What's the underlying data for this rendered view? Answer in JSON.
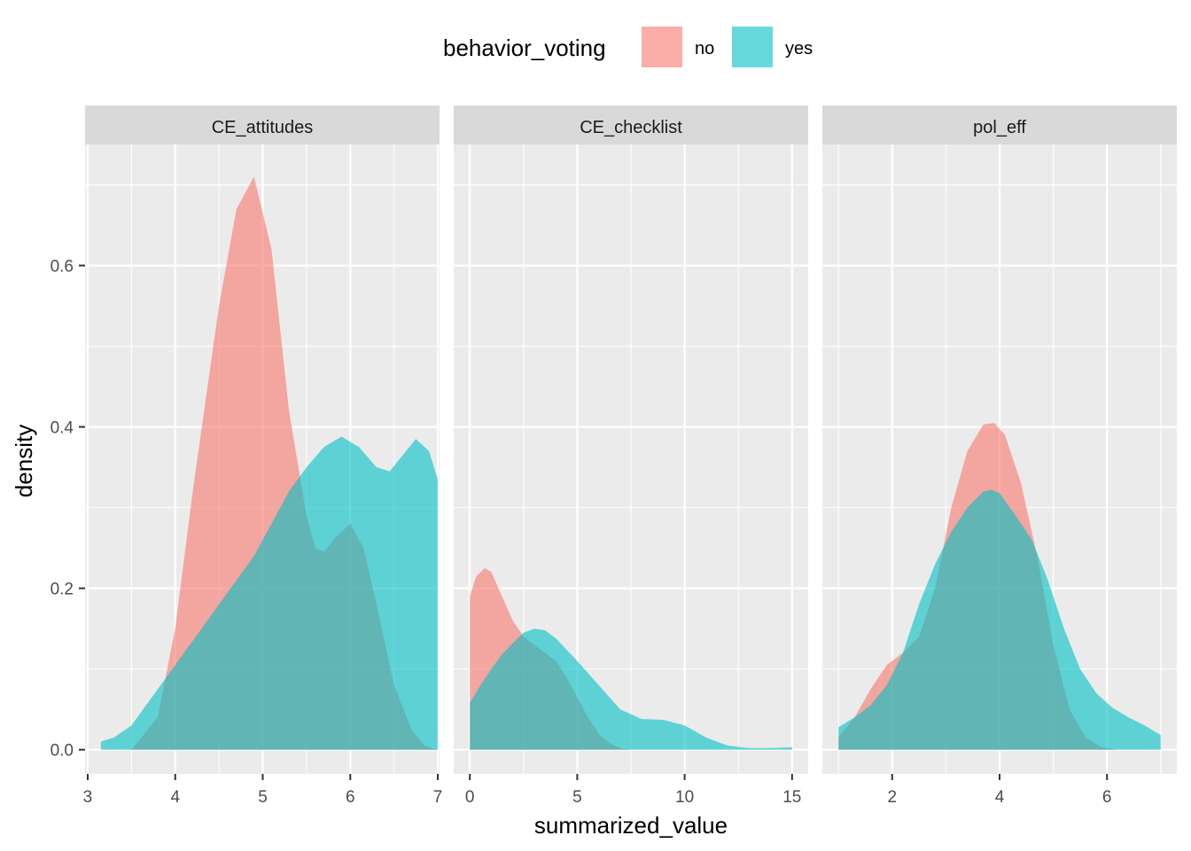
{
  "chart_data": {
    "type": "area",
    "subtype": "density",
    "xlabel": "summarized_value",
    "ylabel": "density",
    "ylim": [
      -0.03,
      0.75
    ],
    "y_ticks": [
      0.0,
      0.2,
      0.4,
      0.6
    ],
    "y_tick_labels": [
      "0.0",
      "0.2",
      "0.4",
      "0.6"
    ],
    "grid": true,
    "legend": {
      "title": "behavior_voting",
      "position": "top",
      "entries": [
        {
          "label": "no",
          "color": "#F8766D"
        },
        {
          "label": "yes",
          "color": "#00BFC4"
        }
      ]
    },
    "fill_opacity": 0.6,
    "panels": [
      {
        "strip": "CE_attitudes",
        "xlim": [
          2.97,
          7.02
        ],
        "x_ticks": [
          3,
          4,
          5,
          6,
          7
        ],
        "x_tick_labels": [
          "3",
          "4",
          "5",
          "6",
          "7"
        ],
        "series": [
          {
            "name": "no",
            "color": "#F8766D",
            "x": [
              3.5,
              3.8,
              4.0,
              4.2,
              4.5,
              4.7,
              4.9,
              5.1,
              5.3,
              5.5,
              5.6,
              5.7,
              5.85,
              6.0,
              6.15,
              6.3,
              6.5,
              6.7,
              6.85,
              7.0
            ],
            "y": [
              0.0,
              0.04,
              0.15,
              0.32,
              0.55,
              0.67,
              0.71,
              0.62,
              0.42,
              0.29,
              0.25,
              0.245,
              0.265,
              0.28,
              0.25,
              0.18,
              0.08,
              0.025,
              0.005,
              0.0
            ]
          },
          {
            "name": "yes",
            "color": "#00BFC4",
            "x": [
              3.15,
              3.3,
              3.5,
              3.7,
              3.9,
              4.1,
              4.3,
              4.5,
              4.7,
              4.9,
              5.1,
              5.3,
              5.5,
              5.7,
              5.9,
              6.1,
              6.3,
              6.45,
              6.6,
              6.75,
              6.9,
              7.0
            ],
            "y": [
              0.01,
              0.015,
              0.03,
              0.06,
              0.09,
              0.12,
              0.15,
              0.18,
              0.21,
              0.24,
              0.28,
              0.32,
              0.35,
              0.375,
              0.388,
              0.375,
              0.35,
              0.345,
              0.365,
              0.385,
              0.37,
              0.335
            ]
          }
        ]
      },
      {
        "strip": "CE_checklist",
        "xlim": [
          -0.75,
          15.75
        ],
        "x_ticks": [
          0,
          5,
          10,
          15
        ],
        "x_tick_labels": [
          "0",
          "5",
          "10",
          "15"
        ],
        "series": [
          {
            "name": "no",
            "color": "#F8766D",
            "x": [
              0.0,
              0.3,
              0.7,
              1.0,
              1.5,
              2.0,
              2.5,
              3.0,
              3.5,
              4.0,
              4.5,
              5.0,
              5.5,
              6.0,
              6.5,
              7.0,
              7.5
            ],
            "y": [
              0.19,
              0.215,
              0.225,
              0.22,
              0.19,
              0.16,
              0.14,
              0.13,
              0.12,
              0.11,
              0.09,
              0.065,
              0.04,
              0.02,
              0.008,
              0.002,
              0.0
            ]
          },
          {
            "name": "yes",
            "color": "#00BFC4",
            "x": [
              0.0,
              0.5,
              1.0,
              1.5,
              2.0,
              2.5,
              3.0,
              3.5,
              4.0,
              5.0,
              6.0,
              7.0,
              8.0,
              9.0,
              10.0,
              11.0,
              12.0,
              13.0,
              14.0,
              15.0
            ],
            "y": [
              0.058,
              0.08,
              0.1,
              0.118,
              0.132,
              0.145,
              0.15,
              0.148,
              0.138,
              0.11,
              0.08,
              0.05,
              0.038,
              0.037,
              0.03,
              0.015,
              0.005,
              0.002,
              0.002,
              0.003
            ]
          }
        ]
      },
      {
        "strip": "pol_eff",
        "xlim": [
          0.7,
          7.3
        ],
        "x_ticks": [
          2,
          4,
          6
        ],
        "x_tick_labels": [
          "2",
          "4",
          "6"
        ],
        "series": [
          {
            "name": "no",
            "color": "#F8766D",
            "x": [
              1.0,
              1.3,
              1.6,
              1.9,
              2.2,
              2.5,
              2.8,
              3.1,
              3.4,
              3.7,
              3.9,
              4.1,
              4.4,
              4.7,
              5.0,
              5.3,
              5.6,
              5.9,
              6.2
            ],
            "y": [
              0.015,
              0.04,
              0.075,
              0.105,
              0.12,
              0.14,
              0.2,
              0.3,
              0.37,
              0.403,
              0.405,
              0.39,
              0.33,
              0.24,
              0.13,
              0.05,
              0.015,
              0.003,
              0.0
            ]
          },
          {
            "name": "yes",
            "color": "#00BFC4",
            "x": [
              1.0,
              1.3,
              1.6,
              1.9,
              2.2,
              2.5,
              2.8,
              3.1,
              3.4,
              3.7,
              3.85,
              4.0,
              4.3,
              4.6,
              4.9,
              5.2,
              5.5,
              5.8,
              6.1,
              6.4,
              6.7,
              7.0
            ],
            "y": [
              0.028,
              0.04,
              0.055,
              0.08,
              0.12,
              0.18,
              0.23,
              0.27,
              0.3,
              0.32,
              0.322,
              0.318,
              0.29,
              0.26,
              0.21,
              0.15,
              0.1,
              0.07,
              0.052,
              0.04,
              0.03,
              0.018
            ]
          }
        ]
      }
    ]
  }
}
